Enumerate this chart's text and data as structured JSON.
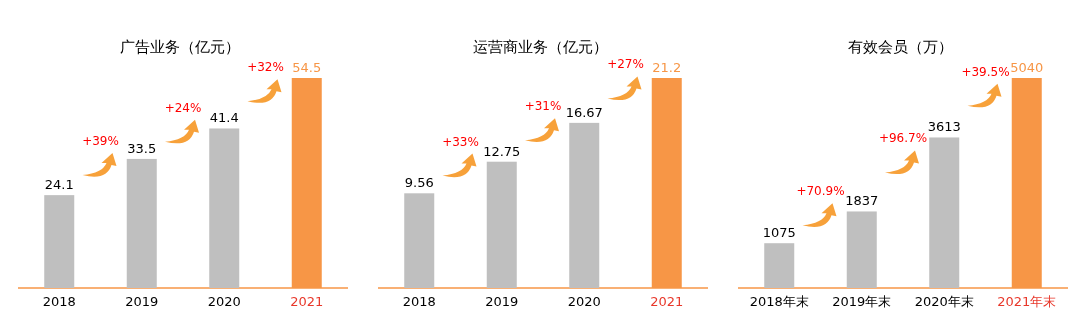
{
  "chart_data": [
    {
      "type": "bar",
      "title": "广告业务（亿元）",
      "categories": [
        "2018",
        "2019",
        "2020",
        "2021"
      ],
      "values": [
        24.1,
        33.5,
        41.4,
        54.5
      ],
      "colors": [
        "#bfbfbf",
        "#bfbfbf",
        "#bfbfbf",
        "#f79646"
      ],
      "data_labels": true,
      "annotations": [
        "+39%",
        "+24%",
        "+32%"
      ]
    },
    {
      "type": "bar",
      "title": "运营商业务（亿元）",
      "categories": [
        "2018",
        "2019",
        "2020",
        "2021"
      ],
      "values": [
        9.56,
        12.75,
        16.67,
        21.2
      ],
      "colors": [
        "#bfbfbf",
        "#bfbfbf",
        "#bfbfbf",
        "#f79646"
      ],
      "data_labels": true,
      "annotations": [
        "+33%",
        "+31%",
        "+27%"
      ]
    },
    {
      "type": "bar",
      "title": "有效会员（万）",
      "categories": [
        "2018年末",
        "2019年末",
        "2020年末",
        "2021年末"
      ],
      "values": [
        1075,
        1837,
        3613,
        5040
      ],
      "colors": [
        "#bfbfbf",
        "#bfbfbf",
        "#bfbfbf",
        "#f79646"
      ],
      "data_labels": true,
      "annotations": [
        "+70.9%",
        "+96.7%",
        "+39.5%"
      ]
    }
  ]
}
